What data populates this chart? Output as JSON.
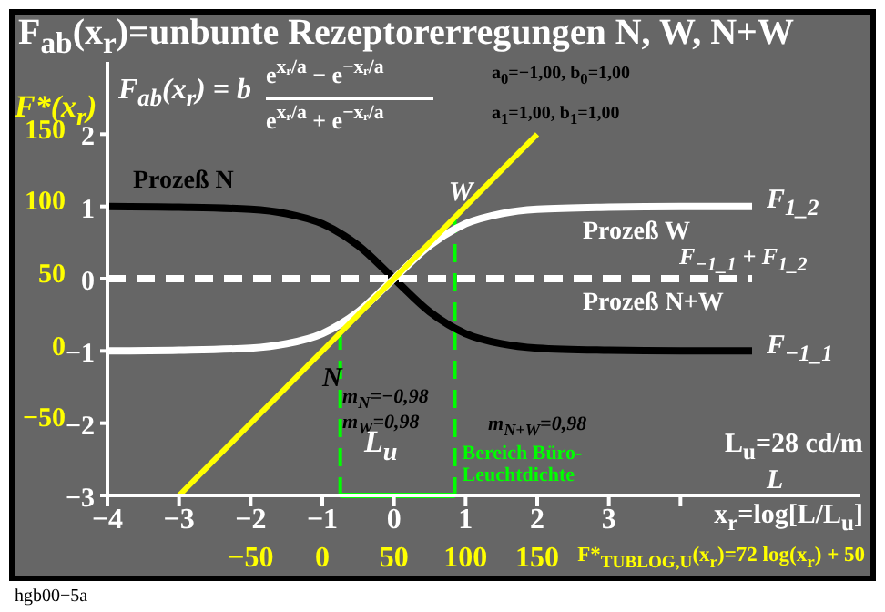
{
  "chart_data": {
    "type": "line",
    "title": "F$_{ab}$(x$_{r}$)=unbunte Rezeptorerregungen N, W, N+W",
    "xlabel": "x$_{r}$=log[L/L$_{u}$]",
    "y2label": "F*(x$_{r}$)",
    "x2label": "F*$_{TUBLOG,U}$(x$_{r}$)=72 log(x$_{r}$) + 50",
    "x": [
      -4,
      -3,
      -2,
      -1.5,
      -1,
      -0.5,
      0,
      0.5,
      1,
      1.5,
      2,
      3,
      4,
      5
    ],
    "series": [
      {
        "name": "Prozeß N",
        "color": "#000000",
        "values": [
          1,
          0.99,
          0.96,
          0.9,
          0.76,
          0.46,
          0,
          -0.46,
          -0.76,
          -0.9,
          -0.96,
          -0.99,
          -1,
          -1
        ]
      },
      {
        "name": "Prozeß W",
        "color": "#ffffff",
        "values": [
          -1,
          -0.99,
          -0.96,
          -0.9,
          -0.76,
          -0.46,
          0,
          0.46,
          0.76,
          0.9,
          0.96,
          0.99,
          1,
          1
        ]
      },
      {
        "name": "Prozeß N+W",
        "color": "#ffffff",
        "line_style": "dashed",
        "values": [
          0,
          0,
          0,
          0,
          0,
          0,
          0,
          0,
          0,
          0,
          0,
          0,
          0,
          0
        ]
      },
      {
        "color": "#ffff00",
        "x": [
          -3,
          2
        ],
        "values": [
          -3,
          2
        ]
      }
    ],
    "marker": "none",
    "xlim": [
      -4,
      6.5
    ],
    "xticks": [
      -4,
      -3,
      -2,
      -1,
      0,
      1,
      2,
      3,
      {
        "value": 4,
        "label": null
      }
    ],
    "ylim": [
      -3,
      3
    ],
    "yticks": [
      -3,
      -2,
      -1,
      0,
      1,
      2
    ],
    "y2lim": [
      -100,
      200
    ],
    "y2ticks": [
      -50,
      0,
      50,
      100,
      150
    ],
    "x2lim": [
      -150,
      375
    ],
    "x2ticks": [
      -50,
      0,
      50,
      100,
      150
    ],
    "ref_lines": [
      {
        "axis": "x",
        "value": -0.75,
        "color": "#00ff00",
        "line_style": "dashed"
      },
      {
        "axis": "x",
        "value": 0.85,
        "label": "Bereich Büro-Leuchtdichte",
        "color": "#00ff00",
        "line_style": "dashed"
      }
    ],
    "annotations": [
      "F$_{ab}$(x$_{r}$) = b",
      "e$^{xᵣ/a}$ − e$^{−xᵣ/a}$",
      "e$^{xᵣ/a}$ + e$^{−xᵣ/a}$",
      "a$_{0}$=−1,00, b$_{0}$=1,00",
      "a$_{1}$=1,00, b$_{1}$=1,00",
      "m$_{N}$=−0,98",
      "m$_{W}$=0,98",
      "m$_{N+W}$=0,98",
      "L$_{u}$=28 cd/m",
      "L",
      "hgb00−5a",
      "L$_{u}$",
      {
        "text": "F$_{1_2}$",
        "x": 5,
        "y": 1
      },
      {
        "text": "F$_{−1_1}$ + F$_{1_2}$",
        "x": 5,
        "y": 0
      },
      {
        "text": "F$_{−1_1}$",
        "x": 5,
        "y": -1
      },
      {
        "text": "N",
        "x": -1,
        "y": -1.2
      },
      {
        "text": "W",
        "x": 1.07,
        "y": 1.25
      }
    ]
  }
}
